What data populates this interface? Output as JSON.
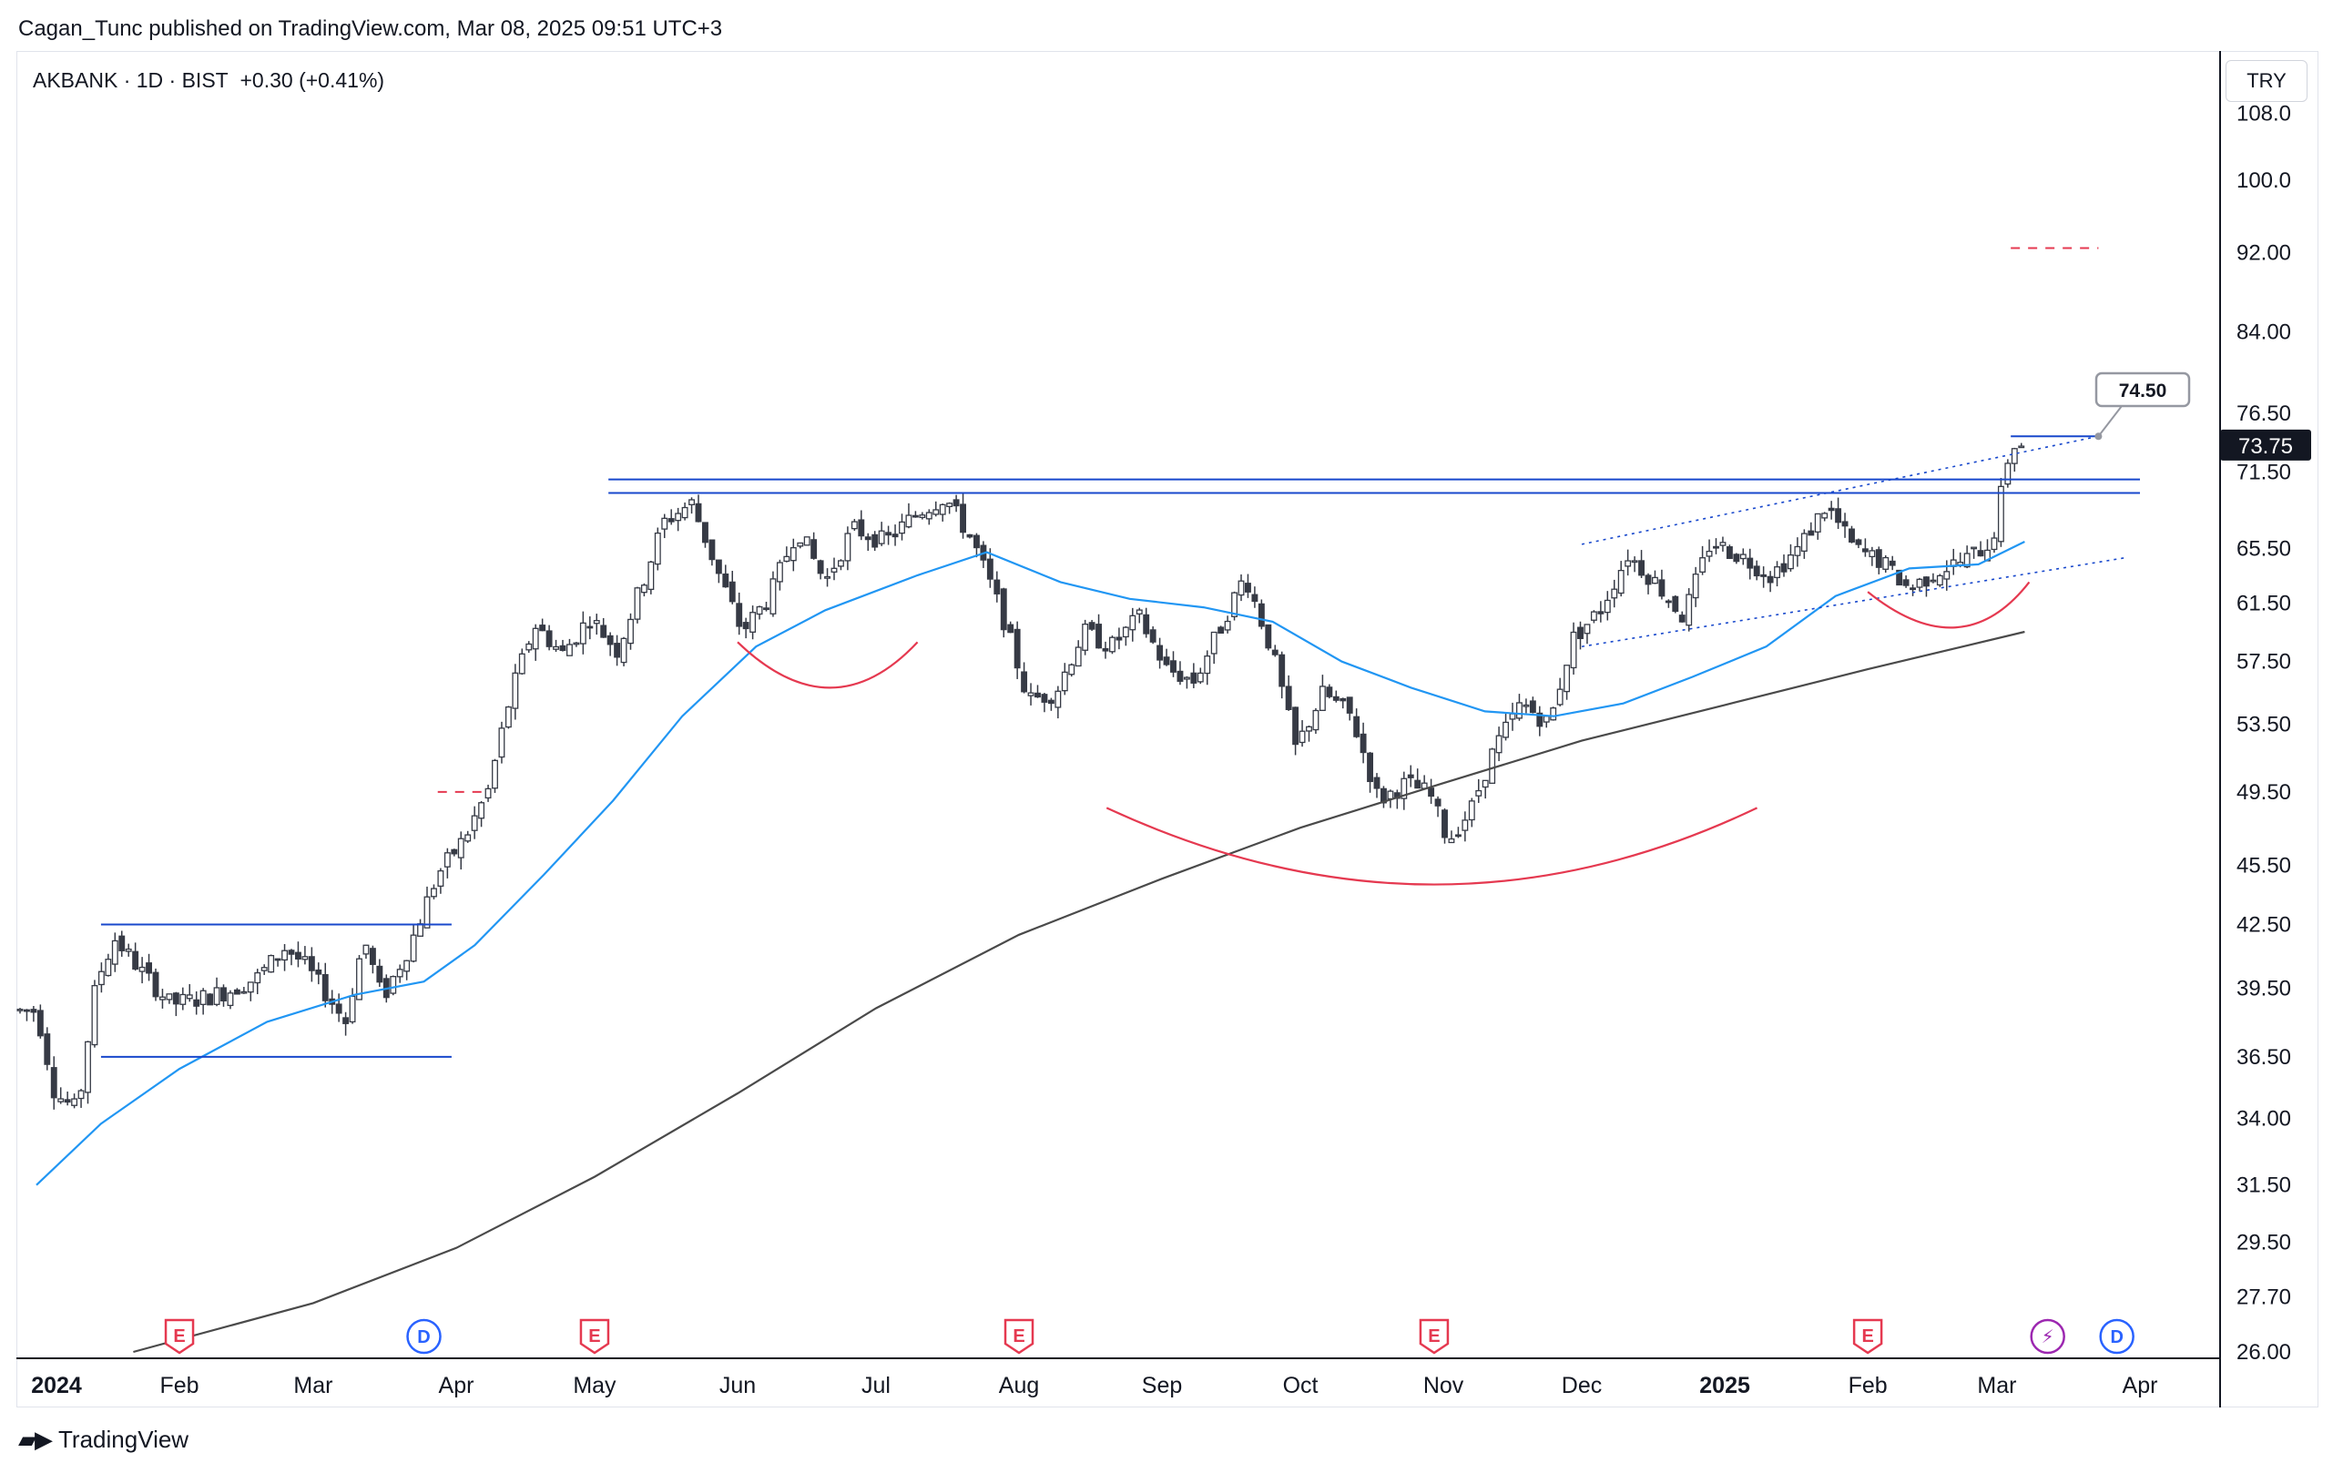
{
  "header": {
    "publisher": "Cagan_Tunc published on TradingView.com, Mar 08, 2025 09:51 UTC+3"
  },
  "symbol": {
    "name": "AKBANK · 1D · BIST",
    "change": "+0.30 (+0.41%)"
  },
  "currency": "TRY",
  "brand": {
    "name": "TradingView",
    "logo_icon": "tradingview-logo-icon"
  },
  "colors": {
    "candle": "#363a45",
    "ma_fast": "#2196f3",
    "ma_slow": "#4a4a4a",
    "level": "#1848cc",
    "arc": "#e53950",
    "price_tag_bg": "#131722"
  },
  "chart_data": {
    "type": "candlestick",
    "price_axis_labels": [
      "108.0",
      "100.0",
      "92.00",
      "84.00",
      "76.50",
      "71.50",
      "65.50",
      "61.50",
      "57.50",
      "53.50",
      "49.50",
      "45.50",
      "42.50",
      "39.50",
      "36.50",
      "34.00",
      "31.50",
      "29.50",
      "27.70",
      "26.00"
    ],
    "time_axis_labels": [
      {
        "label": "2024",
        "bold": true
      },
      {
        "label": "Feb"
      },
      {
        "label": "Mar"
      },
      {
        "label": "Apr"
      },
      {
        "label": "May"
      },
      {
        "label": "Jun"
      },
      {
        "label": "Jul"
      },
      {
        "label": "Aug"
      },
      {
        "label": "Sep"
      },
      {
        "label": "Oct"
      },
      {
        "label": "Nov"
      },
      {
        "label": "Dec"
      },
      {
        "label": "2025",
        "bold": true
      },
      {
        "label": "Feb"
      },
      {
        "label": "Mar"
      },
      {
        "label": "Apr"
      }
    ],
    "scale": "log",
    "last_price": "73.75",
    "target_callout": "74.50",
    "events": [
      {
        "type": "earnings",
        "glyph": "E",
        "date": "2024-02-01"
      },
      {
        "type": "dividend",
        "glyph": "D",
        "date": "2024-03-25"
      },
      {
        "type": "earnings",
        "glyph": "E",
        "date": "2024-05-01"
      },
      {
        "type": "earnings",
        "glyph": "E",
        "date": "2024-08-01"
      },
      {
        "type": "earnings",
        "glyph": "E",
        "date": "2024-10-30"
      },
      {
        "type": "earnings",
        "glyph": "E",
        "date": "2025-02-01"
      },
      {
        "type": "split",
        "glyph": "⚡",
        "date": "2025-03-12"
      },
      {
        "type": "dividend",
        "glyph": "D",
        "date": "2025-03-27"
      }
    ],
    "price_path": [
      [
        "2024-01-01",
        38.5
      ],
      [
        "2024-01-05",
        35.0
      ],
      [
        "2024-01-10",
        34.3
      ],
      [
        "2024-01-14",
        39.8
      ],
      [
        "2024-01-18",
        41.8
      ],
      [
        "2024-01-24",
        40.2
      ],
      [
        "2024-01-30",
        38.8
      ],
      [
        "2024-02-05",
        39.0
      ],
      [
        "2024-02-12",
        39.4
      ],
      [
        "2024-02-18",
        40.0
      ],
      [
        "2024-02-24",
        41.4
      ],
      [
        "2024-02-28",
        40.6
      ],
      [
        "2024-03-04",
        39.2
      ],
      [
        "2024-03-08",
        38.0
      ],
      [
        "2024-03-12",
        41.8
      ],
      [
        "2024-03-16",
        39.0
      ],
      [
        "2024-03-22",
        41.5
      ],
      [
        "2024-03-28",
        45.0
      ],
      [
        "2024-04-03",
        47.0
      ],
      [
        "2024-04-08",
        49.6
      ],
      [
        "2024-04-13",
        55.5
      ],
      [
        "2024-04-18",
        60.0
      ],
      [
        "2024-04-24",
        58.0
      ],
      [
        "2024-04-30",
        60.5
      ],
      [
        "2024-05-06",
        58.2
      ],
      [
        "2024-05-12",
        63.5
      ],
      [
        "2024-05-16",
        67.5
      ],
      [
        "2024-05-22",
        69.0
      ],
      [
        "2024-05-28",
        63.5
      ],
      [
        "2024-06-02",
        59.5
      ],
      [
        "2024-06-08",
        62.0
      ],
      [
        "2024-06-14",
        67.0
      ],
      [
        "2024-06-20",
        63.0
      ],
      [
        "2024-06-26",
        67.0
      ],
      [
        "2024-07-03",
        66.0
      ],
      [
        "2024-07-10",
        68.2
      ],
      [
        "2024-07-16",
        69.5
      ],
      [
        "2024-07-22",
        66.0
      ],
      [
        "2024-07-28",
        61.0
      ],
      [
        "2024-08-03",
        55.0
      ],
      [
        "2024-08-09",
        55.5
      ],
      [
        "2024-08-15",
        59.5
      ],
      [
        "2024-08-21",
        58.5
      ],
      [
        "2024-08-27",
        60.5
      ],
      [
        "2024-09-02",
        57.0
      ],
      [
        "2024-09-08",
        56.2
      ],
      [
        "2024-09-14",
        60.0
      ],
      [
        "2024-09-19",
        63.5
      ],
      [
        "2024-09-25",
        58.0
      ],
      [
        "2024-09-30",
        52.0
      ],
      [
        "2024-10-06",
        55.5
      ],
      [
        "2024-10-12",
        54.0
      ],
      [
        "2024-10-18",
        49.0
      ],
      [
        "2024-10-24",
        50.0
      ],
      [
        "2024-10-29",
        49.4
      ],
      [
        "2024-11-02",
        46.8
      ],
      [
        "2024-11-07",
        48.5
      ],
      [
        "2024-11-12",
        52.0
      ],
      [
        "2024-11-18",
        54.8
      ],
      [
        "2024-11-24",
        53.5
      ],
      [
        "2024-11-29",
        59.0
      ],
      [
        "2024-12-05",
        61.0
      ],
      [
        "2024-12-11",
        65.0
      ],
      [
        "2024-12-17",
        63.0
      ],
      [
        "2024-12-23",
        60.5
      ],
      [
        "2024-12-29",
        66.0
      ],
      [
        "2025-01-05",
        64.8
      ],
      [
        "2025-01-11",
        63.5
      ],
      [
        "2025-01-17",
        65.5
      ],
      [
        "2025-01-23",
        68.8
      ],
      [
        "2025-01-29",
        65.5
      ],
      [
        "2025-02-04",
        64.5
      ],
      [
        "2025-02-10",
        62.5
      ],
      [
        "2025-02-16",
        63.8
      ],
      [
        "2025-02-22",
        64.6
      ],
      [
        "2025-02-28",
        66.0
      ],
      [
        "2025-03-04",
        73.8
      ],
      [
        "2025-03-07",
        73.75
      ]
    ],
    "ma_fast": [
      [
        "2024-01-01",
        31.5
      ],
      [
        "2024-01-15",
        33.8
      ],
      [
        "2024-02-01",
        36.0
      ],
      [
        "2024-02-20",
        38.0
      ],
      [
        "2024-03-10",
        39.2
      ],
      [
        "2024-03-25",
        39.8
      ],
      [
        "2024-04-05",
        41.5
      ],
      [
        "2024-04-20",
        45.0
      ],
      [
        "2024-05-05",
        49.0
      ],
      [
        "2024-05-20",
        54.0
      ],
      [
        "2024-06-05",
        58.5
      ],
      [
        "2024-06-20",
        61.0
      ],
      [
        "2024-07-10",
        63.5
      ],
      [
        "2024-07-25",
        65.2
      ],
      [
        "2024-08-10",
        63.0
      ],
      [
        "2024-08-25",
        61.8
      ],
      [
        "2024-09-10",
        61.2
      ],
      [
        "2024-09-25",
        60.2
      ],
      [
        "2024-10-10",
        57.5
      ],
      [
        "2024-10-25",
        55.8
      ],
      [
        "2024-11-10",
        54.3
      ],
      [
        "2024-11-25",
        54.0
      ],
      [
        "2024-12-10",
        54.8
      ],
      [
        "2024-12-25",
        56.5
      ],
      [
        "2025-01-10",
        58.5
      ],
      [
        "2025-01-25",
        62.0
      ],
      [
        "2025-02-10",
        64.0
      ],
      [
        "2025-02-25",
        64.3
      ],
      [
        "2025-03-07",
        66.0
      ]
    ],
    "ma_slow": [
      [
        "2024-01-22",
        26.0
      ],
      [
        "2024-03-01",
        27.5
      ],
      [
        "2024-04-01",
        29.3
      ],
      [
        "2024-05-01",
        31.8
      ],
      [
        "2024-06-01",
        35.0
      ],
      [
        "2024-07-01",
        38.6
      ],
      [
        "2024-08-01",
        42.0
      ],
      [
        "2024-09-01",
        44.8
      ],
      [
        "2024-10-01",
        47.5
      ],
      [
        "2024-11-01",
        50.0
      ],
      [
        "2024-12-01",
        52.5
      ],
      [
        "2025-01-01",
        54.7
      ],
      [
        "2025-02-01",
        57.0
      ],
      [
        "2025-03-07",
        59.5
      ]
    ],
    "horizontal_levels": [
      {
        "from": "2024-01-15",
        "to": "2024-03-31",
        "price": 42.5
      },
      {
        "from": "2024-01-15",
        "to": "2024-03-31",
        "price": 36.5
      },
      {
        "from": "2024-05-04",
        "to": "2025-04-01",
        "price": 70.9
      },
      {
        "from": "2024-05-04",
        "to": "2025-04-01",
        "price": 69.8
      },
      {
        "from": "2025-03-04",
        "to": "2025-03-23",
        "price": 74.5
      }
    ],
    "dashed_targets": [
      {
        "from": "2024-03-28",
        "to": "2024-04-08",
        "price": 49.5
      },
      {
        "from": "2025-03-04",
        "to": "2025-03-23",
        "price": 92.5
      }
    ],
    "channel": [
      {
        "from": [
          "2024-12-01",
          65.8
        ],
        "to": [
          "2025-03-23",
          74.5
        ]
      },
      {
        "from": [
          "2024-12-01",
          58.5
        ],
        "to": [
          "2025-03-29",
          64.8
        ]
      }
    ],
    "arcs": [
      {
        "from": [
          "2024-06-01",
          58.8
        ],
        "low": [
          "2024-06-21",
          55.8
        ],
        "to": [
          "2024-07-10",
          58.8
        ]
      },
      {
        "from": [
          "2024-08-20",
          48.6
        ],
        "low": [
          "2024-10-30",
          44.5
        ],
        "to": [
          "2025-01-08",
          48.6
        ]
      },
      {
        "from": [
          "2025-02-01",
          62.3
        ],
        "low": [
          "2025-02-20",
          59.8
        ],
        "to": [
          "2025-03-08",
          63.0
        ]
      }
    ]
  }
}
